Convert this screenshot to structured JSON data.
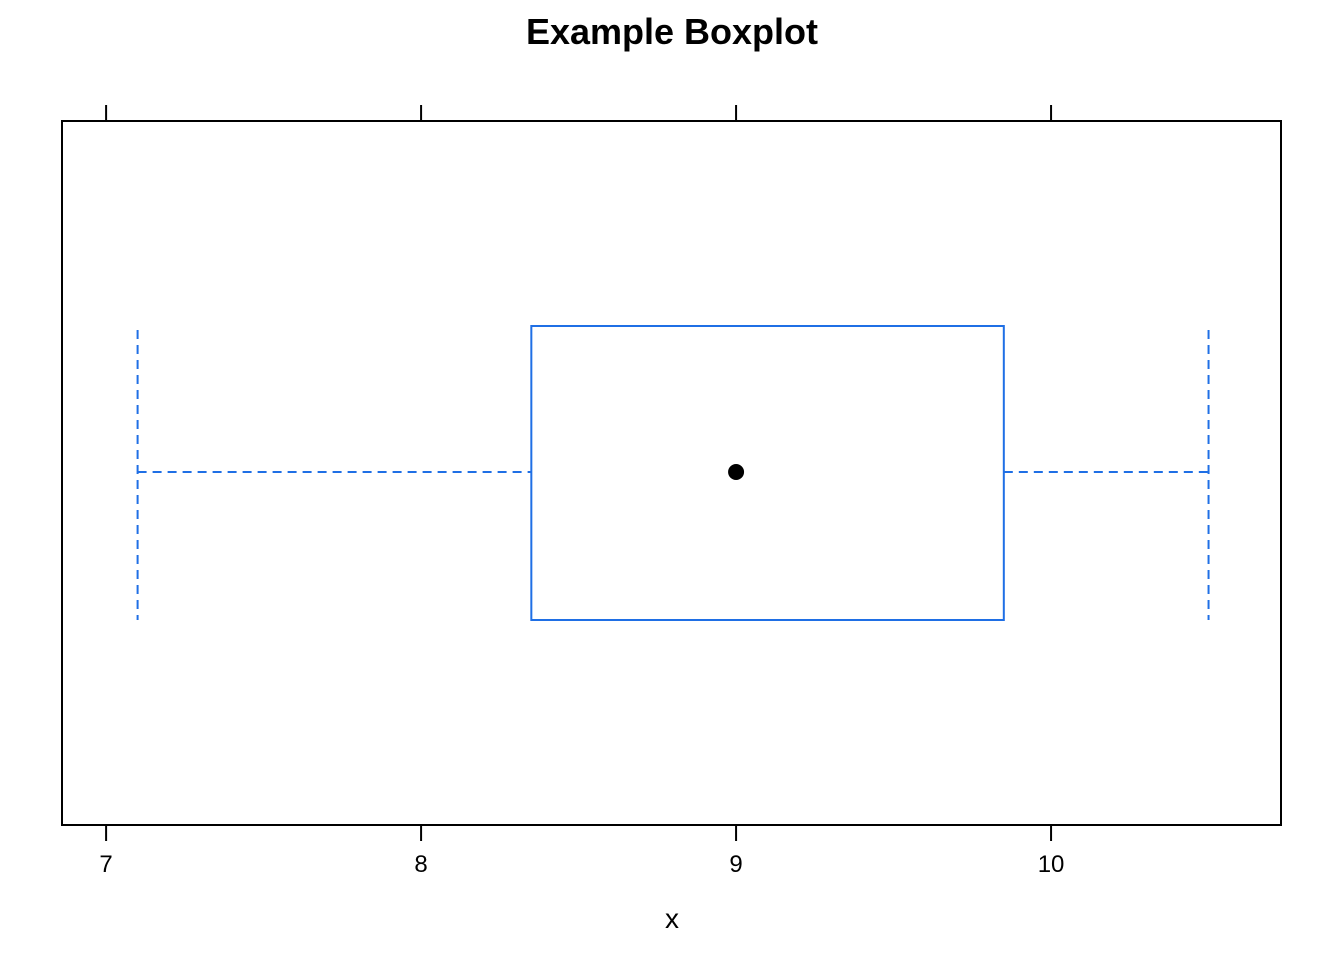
{
  "chart_data": {
    "type": "boxplot",
    "title": "Example Boxplot",
    "xlabel": "x",
    "ylabel": "",
    "xlim": [
      6.86,
      10.73
    ],
    "ticks": [
      7,
      8,
      9,
      10
    ],
    "tick_labels": [
      "7",
      "8",
      "9",
      "10"
    ],
    "box": {
      "min": 7.1,
      "q1": 8.35,
      "median": 9.0,
      "q3": 9.85,
      "max": 10.5
    },
    "box_color": "#1f6fe5",
    "median_marker_color": "#000000",
    "axis_color": "#000000",
    "grid": false,
    "legend": "none"
  }
}
